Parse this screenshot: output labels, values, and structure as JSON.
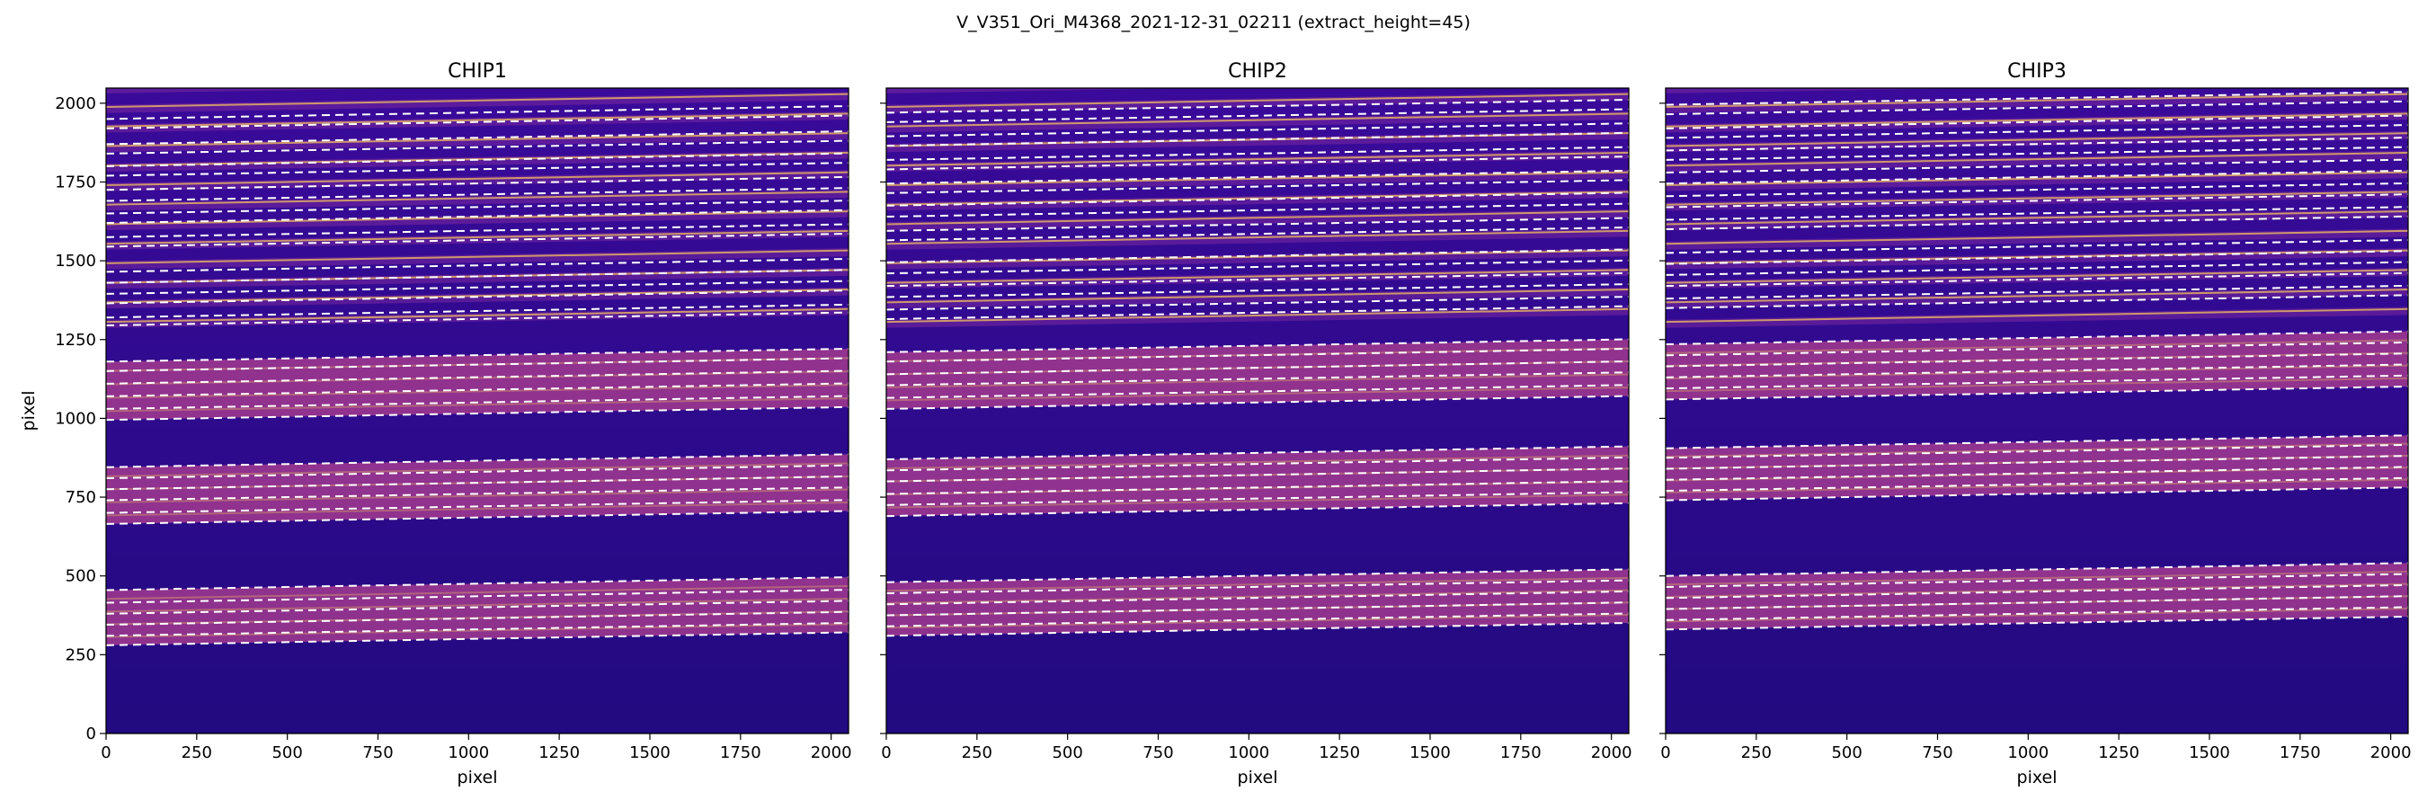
{
  "figure": {
    "suptitle": "V_V351_Ori_M4368_2021-12-31_02211  (extract_height=45)"
  },
  "colors": {
    "background_dark": "#1a0870",
    "band_magenta": "#a23a8f",
    "band_hot": "#f3c25c",
    "trace_line": "#ffffff",
    "axes_frame": "#000000"
  },
  "colormap": "plasma",
  "chart_data": [
    {
      "type": "heatmap",
      "title": "CHIP1",
      "xlabel": "pixel",
      "ylabel": "pixel",
      "xlim": [
        0,
        2048
      ],
      "ylim": [
        0,
        2048
      ],
      "xticks": [
        0,
        250,
        500,
        750,
        1000,
        1250,
        1500,
        1750,
        2000
      ],
      "yticks": [
        0,
        250,
        500,
        750,
        1000,
        1250,
        1500,
        1750,
        2000
      ],
      "ytick_labels_visible": true,
      "grid": false,
      "order_traces_at_x0": [
        280,
        310,
        345,
        380,
        415,
        455,
        665,
        700,
        740,
        775,
        810,
        845,
        995,
        1030,
        1070,
        1110,
        1150,
        1180,
        1295,
        1320,
        1365,
        1395,
        1430,
        1465,
        1545,
        1575,
        1620,
        1650,
        1690,
        1725,
        1770,
        1800,
        1840,
        1870,
        1920,
        1950
      ],
      "bright_bands_y_at_x0": [
        [
          280,
          455
        ],
        [
          665,
          845
        ],
        [
          995,
          1180
        ]
      ],
      "trace_slope": 0.02
    },
    {
      "type": "heatmap",
      "title": "CHIP2",
      "xlabel": "pixel",
      "ylabel": "",
      "xlim": [
        0,
        2048
      ],
      "ylim": [
        0,
        2048
      ],
      "xticks": [
        0,
        250,
        500,
        750,
        1000,
        1250,
        1500,
        1750,
        2000
      ],
      "yticks": [
        0,
        250,
        500,
        750,
        1000,
        1250,
        1500,
        1750,
        2000
      ],
      "ytick_labels_visible": false,
      "grid": false,
      "order_traces_at_x0": [
        310,
        340,
        375,
        410,
        445,
        480,
        690,
        725,
        760,
        800,
        835,
        870,
        1030,
        1065,
        1105,
        1140,
        1180,
        1210,
        1315,
        1345,
        1385,
        1420,
        1460,
        1495,
        1565,
        1595,
        1640,
        1675,
        1715,
        1745,
        1790,
        1820,
        1865,
        1895,
        1940,
        1970
      ],
      "bright_bands_y_at_x0": [
        [
          310,
          480
        ],
        [
          690,
          870
        ],
        [
          1030,
          1210
        ]
      ],
      "trace_slope": 0.02
    },
    {
      "type": "heatmap",
      "title": "CHIP3",
      "xlabel": "pixel",
      "ylabel": "",
      "xlim": [
        0,
        2048
      ],
      "ylim": [
        0,
        2048
      ],
      "xticks": [
        0,
        250,
        500,
        750,
        1000,
        1250,
        1500,
        1750,
        2000
      ],
      "yticks": [
        0,
        250,
        500,
        750,
        1000,
        1250,
        1500,
        1750,
        2000
      ],
      "ytick_labels_visible": false,
      "grid": false,
      "order_traces_at_x0": [
        330,
        360,
        395,
        430,
        465,
        500,
        740,
        770,
        805,
        840,
        875,
        905,
        1060,
        1095,
        1130,
        1165,
        1200,
        1235,
        1350,
        1380,
        1420,
        1455,
        1490,
        1525,
        1600,
        1630,
        1670,
        1705,
        1745,
        1780,
        1820,
        1850,
        1890,
        1920,
        1965,
        1995
      ],
      "bright_bands_y_at_x0": [
        [
          330,
          500
        ],
        [
          740,
          905
        ],
        [
          1060,
          1235
        ]
      ],
      "trace_slope": 0.02
    }
  ]
}
